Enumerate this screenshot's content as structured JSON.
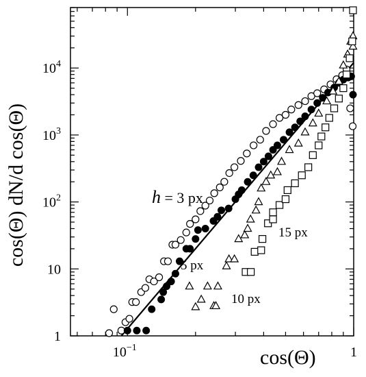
{
  "chart_data": {
    "type": "scatter",
    "xlabel": "cos(Θ)",
    "ylabel": "cos(Θ) dN/d cos(Θ)",
    "xscale": "log",
    "yscale": "log",
    "xlim": [
      0.056,
      1.0
    ],
    "ylim": [
      1,
      80000
    ],
    "x_ticks": [
      {
        "value": 0.1,
        "base": "10",
        "exp": "−1"
      },
      {
        "value": 1,
        "base": "1",
        "exp": ""
      }
    ],
    "y_ticks": [
      {
        "value": 1,
        "base": "1",
        "exp": ""
      },
      {
        "value": 10,
        "base": "10",
        "exp": ""
      },
      {
        "value": 100,
        "base": "10",
        "exp": "2"
      },
      {
        "value": 1000,
        "base": "10",
        "exp": "3"
      },
      {
        "value": 10000,
        "base": "10",
        "exp": "4"
      }
    ],
    "grid": false,
    "series": [
      {
        "marker": "circle-open",
        "annotation": "3 px",
        "points": [
          [
            0.083,
            1.0
          ],
          [
            0.087,
            2.5
          ],
          [
            0.094,
            1.2
          ],
          [
            0.098,
            1.6
          ],
          [
            0.102,
            1.8
          ],
          [
            0.105,
            3.2
          ],
          [
            0.109,
            3.2
          ],
          [
            0.115,
            4.5
          ],
          [
            0.12,
            5.2
          ],
          [
            0.125,
            7.0
          ],
          [
            0.131,
            6.5
          ],
          [
            0.138,
            7.5
          ],
          [
            0.145,
            13
          ],
          [
            0.151,
            13
          ],
          [
            0.158,
            23
          ],
          [
            0.163,
            23
          ],
          [
            0.172,
            27
          ],
          [
            0.182,
            35
          ],
          [
            0.189,
            47
          ],
          [
            0.2,
            55
          ],
          [
            0.21,
            73
          ],
          [
            0.221,
            88
          ],
          [
            0.231,
            105
          ],
          [
            0.242,
            135
          ],
          [
            0.256,
            165
          ],
          [
            0.268,
            200
          ],
          [
            0.282,
            270
          ],
          [
            0.297,
            330
          ],
          [
            0.317,
            410
          ],
          [
            0.337,
            530
          ],
          [
            0.361,
            700
          ],
          [
            0.386,
            850
          ],
          [
            0.41,
            1150
          ],
          [
            0.44,
            1450
          ],
          [
            0.47,
            1800
          ],
          [
            0.5,
            2000
          ],
          [
            0.53,
            2400
          ],
          [
            0.57,
            2800
          ],
          [
            0.61,
            3200
          ],
          [
            0.65,
            3800
          ],
          [
            0.69,
            4200
          ],
          [
            0.74,
            4800
          ],
          [
            0.79,
            5700
          ],
          [
            0.84,
            6800
          ],
          [
            0.89,
            7800
          ],
          [
            0.93,
            9500
          ],
          [
            0.965,
            2500
          ],
          [
            0.99,
            1350
          ]
        ]
      },
      {
        "marker": "circle-filled",
        "annotation": "5 px",
        "points": [
          [
            0.1,
            1.2
          ],
          [
            0.11,
            1.2
          ],
          [
            0.121,
            1.2
          ],
          [
            0.128,
            2.5
          ],
          [
            0.141,
            3.5
          ],
          [
            0.144,
            4.5
          ],
          [
            0.149,
            5.5
          ],
          [
            0.156,
            6.5
          ],
          [
            0.163,
            8.5
          ],
          [
            0.17,
            13
          ],
          [
            0.182,
            20
          ],
          [
            0.189,
            20
          ],
          [
            0.2,
            28
          ],
          [
            0.205,
            38
          ],
          [
            0.221,
            40
          ],
          [
            0.24,
            52
          ],
          [
            0.25,
            60
          ],
          [
            0.26,
            75
          ],
          [
            0.28,
            80
          ],
          [
            0.3,
            110
          ],
          [
            0.31,
            130
          ],
          [
            0.32,
            150
          ],
          [
            0.34,
            200
          ],
          [
            0.36,
            250
          ],
          [
            0.38,
            330
          ],
          [
            0.4,
            400
          ],
          [
            0.42,
            480
          ],
          [
            0.44,
            600
          ],
          [
            0.46,
            700
          ],
          [
            0.49,
            850
          ],
          [
            0.52,
            1100
          ],
          [
            0.55,
            1300
          ],
          [
            0.58,
            1600
          ],
          [
            0.61,
            1900
          ],
          [
            0.65,
            2400
          ],
          [
            0.69,
            3000
          ],
          [
            0.73,
            3600
          ],
          [
            0.77,
            4300
          ],
          [
            0.82,
            5100
          ],
          [
            0.86,
            6000
          ],
          [
            0.9,
            6700
          ],
          [
            0.945,
            7200
          ],
          [
            0.975,
            7500
          ],
          [
            1.0,
            4000
          ]
        ]
      },
      {
        "marker": "triangle-open",
        "annotation": "10 px",
        "points": [
          [
            0.188,
            5.5
          ],
          [
            0.2,
            2.7
          ],
          [
            0.212,
            3.5
          ],
          [
            0.226,
            5.5
          ],
          [
            0.241,
            2.8
          ],
          [
            0.246,
            2.8
          ],
          [
            0.251,
            5.5
          ],
          [
            0.274,
            11
          ],
          [
            0.281,
            14
          ],
          [
            0.297,
            14
          ],
          [
            0.31,
            28
          ],
          [
            0.33,
            32
          ],
          [
            0.34,
            40
          ],
          [
            0.35,
            55
          ],
          [
            0.37,
            75
          ],
          [
            0.38,
            100
          ],
          [
            0.39,
            160
          ],
          [
            0.41,
            200
          ],
          [
            0.43,
            250
          ],
          [
            0.46,
            280
          ],
          [
            0.48,
            400
          ],
          [
            0.52,
            600
          ],
          [
            0.57,
            750
          ],
          [
            0.61,
            1100
          ],
          [
            0.66,
            1500
          ],
          [
            0.7,
            2100
          ],
          [
            0.76,
            3200
          ],
          [
            0.81,
            4500
          ],
          [
            0.86,
            6300
          ],
          [
            0.9,
            11000
          ],
          [
            0.94,
            16000
          ],
          [
            0.97,
            25000
          ],
          [
            0.995,
            30000
          ],
          [
            1.0,
            21000
          ]
        ]
      },
      {
        "marker": "square-open",
        "annotation": "15 px",
        "points": [
          [
            0.333,
            9
          ],
          [
            0.351,
            9
          ],
          [
            0.365,
            18
          ],
          [
            0.39,
            19
          ],
          [
            0.395,
            28
          ],
          [
            0.418,
            48
          ],
          [
            0.44,
            55
          ],
          [
            0.44,
            70
          ],
          [
            0.47,
            90
          ],
          [
            0.5,
            110
          ],
          [
            0.51,
            150
          ],
          [
            0.55,
            190
          ],
          [
            0.59,
            250
          ],
          [
            0.63,
            330
          ],
          [
            0.66,
            500
          ],
          [
            0.7,
            700
          ],
          [
            0.72,
            950
          ],
          [
            0.75,
            1300
          ],
          [
            0.78,
            1800
          ],
          [
            0.82,
            2500
          ],
          [
            0.86,
            3500
          ],
          [
            0.9,
            5000
          ],
          [
            0.93,
            8000
          ],
          [
            0.96,
            14000
          ],
          [
            0.985,
            25000
          ],
          [
            1.0,
            80000
          ]
        ]
      }
    ],
    "fit_line": {
      "x": [
        0.094,
        1.0
      ],
      "y": [
        1.0,
        12000
      ]
    },
    "annotations": [
      {
        "prefix": "h",
        "text": " = 3 px"
      },
      {
        "prefix": "",
        "text": "5 px"
      },
      {
        "prefix": "",
        "text": "10 px"
      },
      {
        "prefix": "",
        "text": "15 px"
      }
    ]
  }
}
